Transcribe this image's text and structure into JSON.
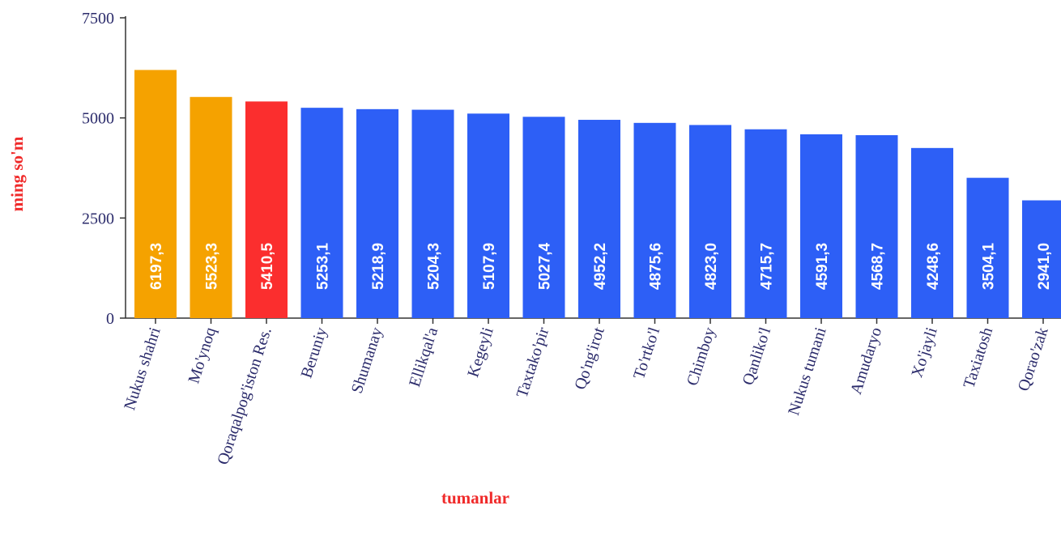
{
  "chart_data": {
    "type": "bar",
    "x_label": "tumanlar",
    "y_label": "ming so'm",
    "categories": [
      "Nukus shahri",
      "Mo'ynoq",
      "Qoraqalpog'iston Res.",
      "Beruniy",
      "Shumanay",
      "Ellikqal'a",
      "Kegeyli",
      "Taxtako'pir",
      "Qo'ng'irot",
      "To'rtko'l",
      "Chimboy",
      "Qanliko'l",
      "Nukus tumani",
      "Amudaryo",
      "Xo'jayli",
      "Taxiatosh",
      "Qorao'zak"
    ],
    "values": [
      6197.3,
      5523.3,
      5410.5,
      5253.1,
      5218.9,
      5204.3,
      5107.9,
      5027.4,
      4952.2,
      4875.6,
      4823.0,
      4715.7,
      4591.3,
      4568.7,
      4248.6,
      3504.1,
      2941.0
    ],
    "value_labels": [
      "6197,3",
      "5523,3",
      "5410,5",
      "5253,1",
      "5218,9",
      "5204,3",
      "5107,9",
      "5027,4",
      "4952,2",
      "4875,6",
      "4823,0",
      "4715,7",
      "4591,3",
      "4568,7",
      "4248,6",
      "3504,1",
      "2941,0"
    ],
    "colors": [
      "#f5a200",
      "#f5a200",
      "#fb2e2e",
      "#2d5ff6",
      "#2d5ff6",
      "#2d5ff6",
      "#2d5ff6",
      "#2d5ff6",
      "#2d5ff6",
      "#2d5ff6",
      "#2d5ff6",
      "#2d5ff6",
      "#2d5ff6",
      "#2d5ff6",
      "#2d5ff6",
      "#2d5ff6",
      "#2d5ff6"
    ],
    "ylim": [
      0,
      7500
    ],
    "yticks": [
      0,
      2500,
      5000,
      7500
    ],
    "grid": false
  }
}
